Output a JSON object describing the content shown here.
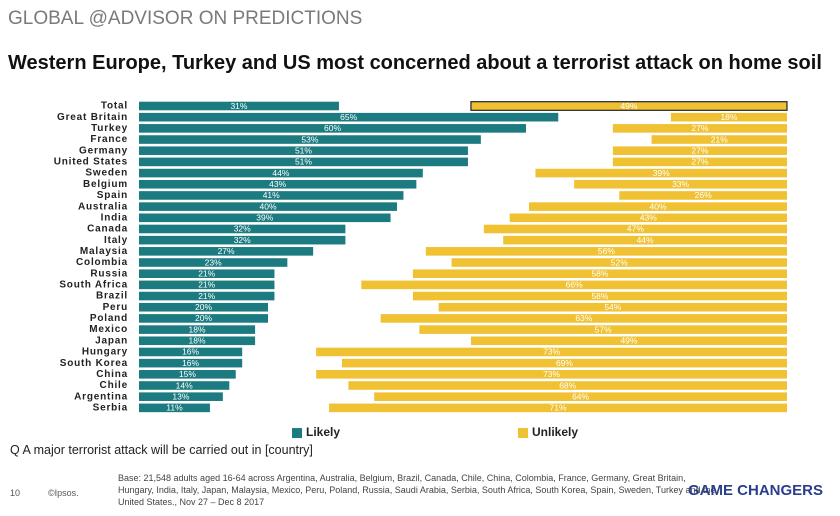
{
  "header": "GLOBAL @ADVISOR ON PREDICTIONS",
  "chart_data": {
    "type": "bar",
    "title": "Western Europe, Turkey and US most concerned about a terrorist attack on home soil",
    "categories": [
      "Total",
      "Great Britain",
      "Turkey",
      "France",
      "Germany",
      "United States",
      "Sweden",
      "Belgium",
      "Spain",
      "Australia",
      "India",
      "Canada",
      "Italy",
      "Malaysia",
      "Colombia",
      "Russia",
      "South Africa",
      "Brazil",
      "Peru",
      "Poland",
      "Mexico",
      "Japan",
      "Hungary",
      "South Korea",
      "China",
      "Chile",
      "Argentina",
      "Serbia"
    ],
    "series": [
      {
        "name": "Likely",
        "color": "#1c7b80",
        "values": [
          31,
          65,
          60,
          53,
          51,
          51,
          44,
          43,
          41,
          40,
          39,
          32,
          32,
          27,
          23,
          21,
          21,
          21,
          20,
          20,
          18,
          18,
          16,
          16,
          15,
          14,
          13,
          11
        ],
        "value_labels": [
          "31%",
          "65%",
          "60%",
          "53%",
          "51%",
          "51%",
          "44%",
          "43%",
          "41%",
          "40%",
          "39%",
          "32%",
          "32%",
          "27%",
          "23%",
          "21%",
          "21%",
          "21%",
          "20%",
          "20%",
          "18%",
          "18%",
          "16%",
          "16%",
          "15%",
          "14%",
          "13%",
          "11%"
        ]
      },
      {
        "name": "Unlikely",
        "color": "#f0c233",
        "values": [
          49,
          18,
          27,
          21,
          27,
          27,
          39,
          33,
          26,
          40,
          43,
          47,
          44,
          56,
          52,
          58,
          66,
          58,
          54,
          63,
          57,
          49,
          73,
          69,
          73,
          68,
          64,
          71
        ],
        "value_labels": [
          "49%",
          "18%",
          "27%",
          "21%",
          "27%",
          "27%",
          "39%",
          "33%",
          "26%",
          "40%",
          "43%",
          "47%",
          "44%",
          "56%",
          "52%",
          "58%",
          "66%",
          "58%",
          "54%",
          "63%",
          "57%",
          "49%",
          "73%",
          "69%",
          "73%",
          "68%",
          "64%",
          "71%"
        ]
      }
    ],
    "note": "Q A major terrorist attack will be carried out in [country]"
  },
  "footer": {
    "page": "10",
    "copyright": "©Ipsos.",
    "base": "Base: 21,548 adults aged 16-64 across Argentina, Australia, Belgium, Brazil, Canada, Chile, China, Colombia, France, Germany, Great Britain, Hungary, India, Italy, Japan, Malaysia, Mexico, Peru, Poland, Russia, Saudi Arabia, Serbia, South Africa, South Korea, Spain, Sweden, Turkey and the United States., Nov 27 – Dec 8 2017",
    "brand": "GAME CHANGERS"
  }
}
